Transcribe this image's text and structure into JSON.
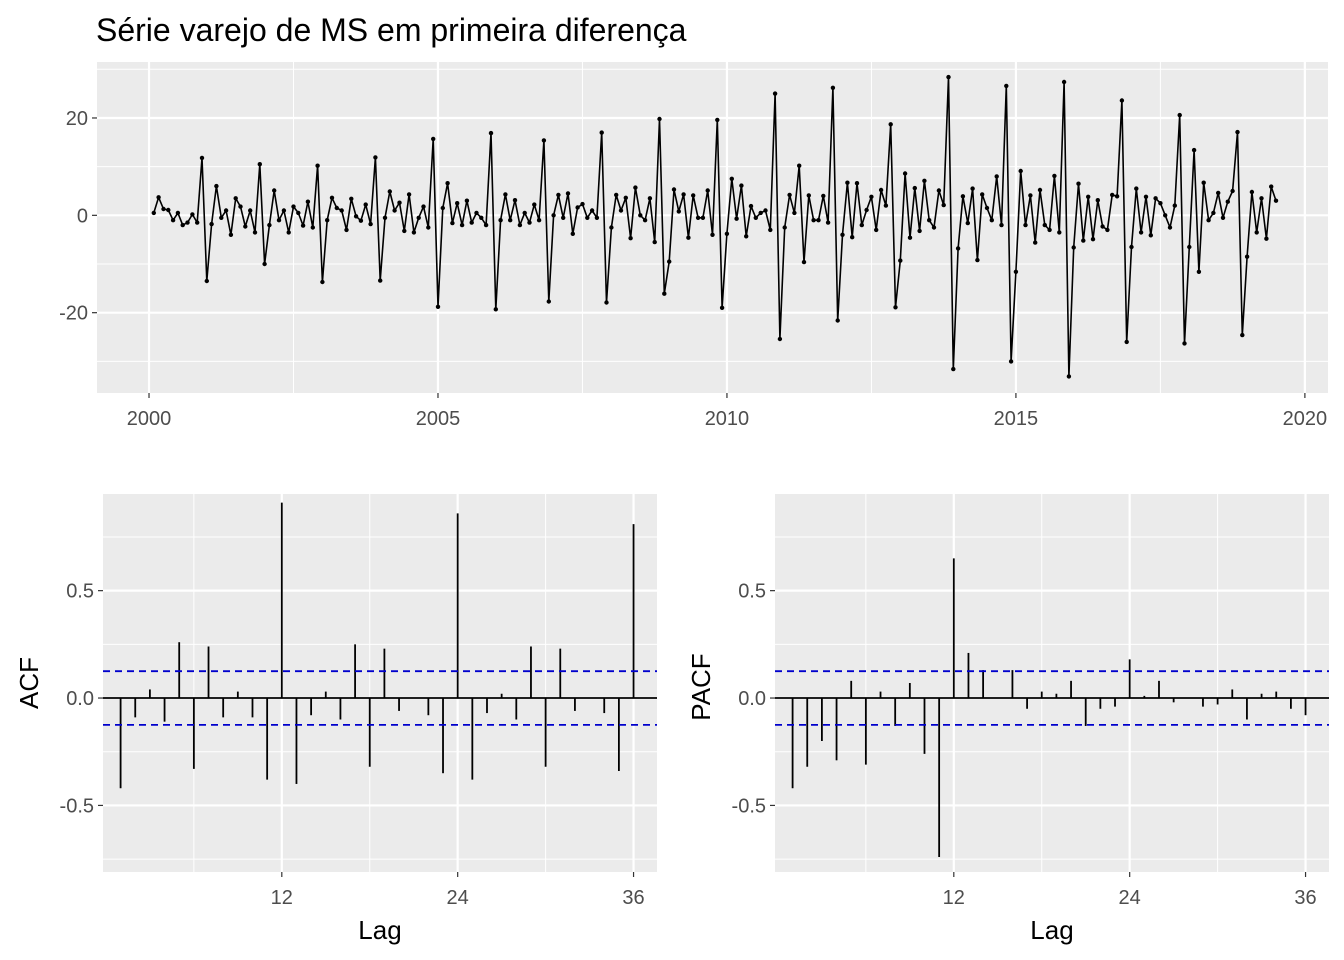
{
  "chart_data": [
    {
      "type": "line",
      "title": "Série varejo de MS em primeira diferença",
      "xlabel": "",
      "ylabel": "",
      "xlim": [
        1999.1,
        2020.4
      ],
      "ylim": [
        -36.5,
        31.5
      ],
      "x_ticks": [
        2000,
        2005,
        2010,
        2015,
        2020
      ],
      "x_tick_labels": [
        "2000",
        "2005",
        "2010",
        "2015",
        "2020"
      ],
      "y_ticks": [
        -20,
        0,
        20
      ],
      "y_tick_labels": [
        "-20",
        "0",
        "20"
      ],
      "grid": true,
      "start": [
        2000,
        2
      ],
      "frequency": 12,
      "values": [
        0.5,
        3.7,
        1.3,
        1.1,
        -1.0,
        0.5,
        -2.0,
        -1.5,
        0.2,
        -1.5,
        11.8,
        -13.5,
        -1.8,
        6.0,
        -0.5,
        1.0,
        -4.0,
        3.5,
        1.8,
        -2.3,
        1.0,
        -3.5,
        10.5,
        -10.0,
        -2.0,
        5.1,
        -1.0,
        1.0,
        -3.5,
        1.8,
        0.5,
        -2.1,
        2.8,
        -2.5,
        10.2,
        -13.7,
        -1.0,
        3.6,
        1.5,
        1.0,
        -3.0,
        3.4,
        -0.2,
        -1.1,
        2.2,
        -1.8,
        11.9,
        -13.4,
        -0.5,
        4.9,
        1.0,
        2.6,
        -3.2,
        4.3,
        -3.5,
        -0.5,
        1.8,
        -2.5,
        15.7,
        -18.8,
        1.5,
        6.6,
        -1.6,
        2.5,
        -2.0,
        3.0,
        -1.5,
        0.5,
        -0.5,
        -2.0,
        16.9,
        -19.3,
        -1.0,
        4.3,
        -1.0,
        3.1,
        -2.0,
        0.5,
        -1.5,
        2.2,
        -1.0,
        15.4,
        -17.7,
        0.0,
        4.2,
        -0.5,
        4.5,
        -3.8,
        1.6,
        2.3,
        -0.5,
        1.0,
        -0.5,
        17.0,
        -17.9,
        -2.5,
        4.2,
        1.0,
        3.6,
        -4.7,
        5.7,
        0.0,
        -1.0,
        3.5,
        -5.5,
        19.8,
        -16.1,
        -9.5,
        5.3,
        0.8,
        4.3,
        -4.6,
        4.1,
        -0.5,
        -0.5,
        5.1,
        -4.0,
        19.6,
        -19.0,
        -3.8,
        7.5,
        -0.7,
        6.1,
        -4.3,
        1.9,
        -0.5,
        0.5,
        1.0,
        -3.0,
        25.0,
        -25.4,
        -2.5,
        4.2,
        0.5,
        10.2,
        -9.6,
        4.1,
        -1.0,
        -1.0,
        4.0,
        -1.5,
        26.2,
        -21.6,
        -4.0,
        6.7,
        -4.5,
        6.6,
        -2.0,
        1.1,
        3.8,
        -3.0,
        5.2,
        2.0,
        18.7,
        -18.9,
        -9.3,
        8.6,
        -4.6,
        5.6,
        -3.2,
        7.1,
        -1.0,
        -2.5,
        5.1,
        2.1,
        28.4,
        -31.6,
        -6.8,
        3.9,
        -1.6,
        5.5,
        -9.2,
        4.3,
        1.5,
        -1.0,
        8.0,
        -2.0,
        26.6,
        -30.0,
        -11.6,
        9.1,
        -2.0,
        4.1,
        -5.6,
        5.2,
        -2.0,
        -3.0,
        8.1,
        -3.5,
        27.4,
        -33.1,
        -6.6,
        6.5,
        -5.2,
        3.8,
        -4.9,
        3.1,
        -2.3,
        -3.0,
        4.2,
        3.9,
        23.6,
        -26.0,
        -6.5,
        5.5,
        -3.5,
        3.8,
        -4.1,
        3.5,
        2.5,
        0.0,
        -2.5,
        2.0,
        20.6,
        -26.3,
        -6.5,
        13.4,
        -11.6,
        6.7,
        -1.0,
        0.5,
        4.6,
        -0.5,
        2.8,
        5.0,
        17.1,
        -24.6,
        -8.5,
        4.8,
        -3.5,
        3.5,
        -4.8,
        5.9,
        3.0
      ]
    },
    {
      "type": "bar",
      "title": "",
      "xlabel": "Lag",
      "ylabel": "ACF",
      "x_ticks": [
        12,
        24,
        36
      ],
      "x_tick_labels": [
        "12",
        "24",
        "36"
      ],
      "y_ticks": [
        -0.5,
        0.0,
        0.5
      ],
      "y_tick_labels": [
        "-0.5",
        "0.0",
        "0.5"
      ],
      "xlim": [
        -0.2,
        37.6
      ],
      "ylim": [
        -0.81,
        0.95
      ],
      "grid": true,
      "confidence_band": 0.125,
      "x": [
        1,
        2,
        3,
        4,
        5,
        6,
        7,
        8,
        9,
        10,
        11,
        12,
        13,
        14,
        15,
        16,
        17,
        18,
        19,
        20,
        21,
        22,
        23,
        24,
        25,
        26,
        27,
        28,
        29,
        30,
        31,
        32,
        33,
        34,
        35,
        36
      ],
      "values": [
        -0.42,
        -0.09,
        0.04,
        -0.11,
        0.26,
        -0.33,
        0.24,
        -0.09,
        0.03,
        -0.09,
        -0.38,
        0.91,
        -0.4,
        -0.08,
        0.03,
        -0.1,
        0.25,
        -0.32,
        0.23,
        -0.06,
        0.0,
        -0.08,
        -0.35,
        0.86,
        -0.38,
        -0.07,
        0.02,
        -0.1,
        0.24,
        -0.32,
        0.23,
        -0.06,
        0.0,
        -0.07,
        -0.34,
        0.81
      ]
    },
    {
      "type": "bar",
      "title": "",
      "xlabel": "Lag",
      "ylabel": "PACF",
      "x_ticks": [
        12,
        24,
        36
      ],
      "x_tick_labels": [
        "12",
        "24",
        "36"
      ],
      "y_ticks": [
        -0.5,
        0.0,
        0.5
      ],
      "y_tick_labels": [
        "-0.5",
        "0.0",
        "0.5"
      ],
      "xlim": [
        -0.2,
        37.6
      ],
      "ylim": [
        -0.81,
        0.95
      ],
      "grid": true,
      "confidence_band": 0.125,
      "x": [
        1,
        2,
        3,
        4,
        5,
        6,
        7,
        8,
        9,
        10,
        11,
        12,
        13,
        14,
        15,
        16,
        17,
        18,
        19,
        20,
        21,
        22,
        23,
        24,
        25,
        26,
        27,
        28,
        29,
        30,
        31,
        32,
        33,
        34,
        35,
        36
      ],
      "values": [
        -0.42,
        -0.32,
        -0.2,
        -0.29,
        0.08,
        -0.31,
        0.03,
        -0.13,
        0.07,
        -0.26,
        -0.74,
        0.65,
        0.21,
        0.13,
        0.0,
        0.13,
        -0.05,
        0.03,
        0.02,
        0.08,
        -0.13,
        -0.05,
        -0.04,
        0.18,
        0.01,
        0.08,
        -0.02,
        0.0,
        -0.04,
        -0.03,
        0.04,
        -0.1,
        0.02,
        0.03,
        -0.05,
        -0.08
      ]
    }
  ]
}
